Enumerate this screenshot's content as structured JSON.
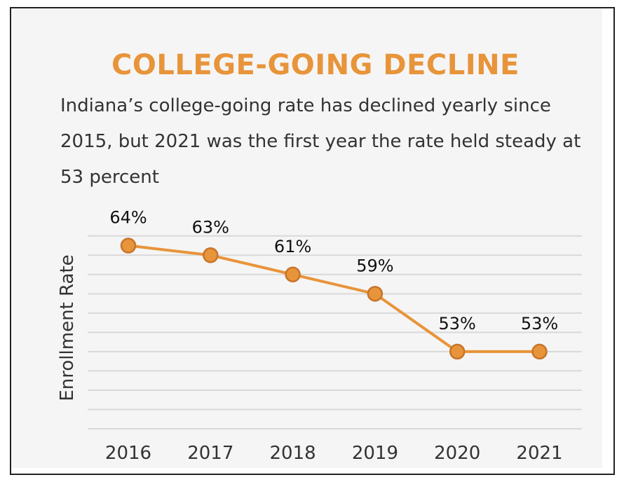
{
  "colors": {
    "accent": "#e8943a",
    "point_fill": "#e8943a",
    "point_stroke": "#c7742a",
    "grid": "#d9d9d9",
    "background": "#f5f5f5"
  },
  "chart_data": {
    "type": "line",
    "title": "COLLEGE-GOING DECLINE",
    "subtitle": "Indiana’s college-going rate has declined yearly since 2015, but 2021 was the first year the rate held steady at 53 percent",
    "xlabel": "",
    "ylabel": "Enrollment Rate",
    "categories": [
      "2016",
      "2017",
      "2018",
      "2019",
      "2020",
      "2021"
    ],
    "series": [
      {
        "values": [
          64,
          63,
          61,
          59,
          53,
          53
        ]
      }
    ],
    "data_labels": [
      "64%",
      "63%",
      "61%",
      "59%",
      "53%",
      "53%"
    ],
    "ylim": [
      45,
      66
    ],
    "grid": true,
    "legend": "none"
  }
}
